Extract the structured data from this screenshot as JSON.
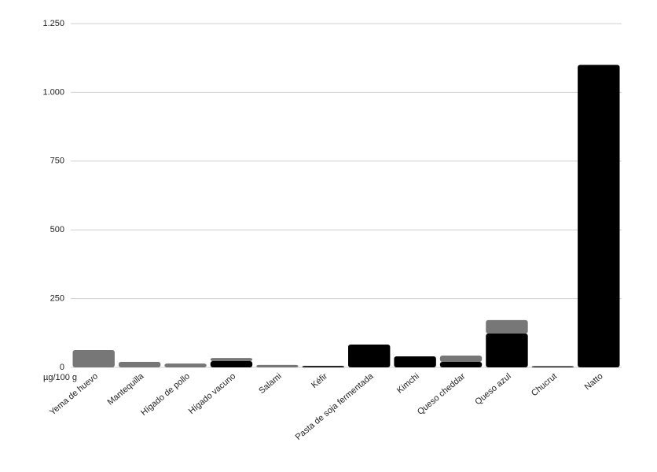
{
  "chart_data": {
    "type": "stacked_bar",
    "y_label": "µg/100 g",
    "categories": [
      "Yema de huevo",
      "Mantequilla",
      "Hígado de pollo",
      "Hígado vacuno",
      "Salami",
      "Kéfir",
      "Pasta de soja fermentada",
      "Kimchi",
      "Queso cheddar",
      "Queso azul",
      "Chucrut",
      "Natto"
    ],
    "series": [
      {
        "color": "#000000",
        "values": [
          0,
          0,
          0,
          23,
          0,
          5,
          83,
          40,
          20,
          123,
          4,
          1100
        ]
      },
      {
        "color": "#777777",
        "values": [
          63,
          20,
          14,
          11,
          9,
          0,
          0,
          0,
          23,
          49,
          0,
          0
        ]
      }
    ],
    "ylim": [
      0,
      1250
    ],
    "yticks": [
      0,
      250,
      500,
      750,
      {
        "value": 1000,
        "label": "1.000"
      },
      {
        "value": 1250,
        "label": "1.250"
      }
    ],
    "grid": true
  }
}
